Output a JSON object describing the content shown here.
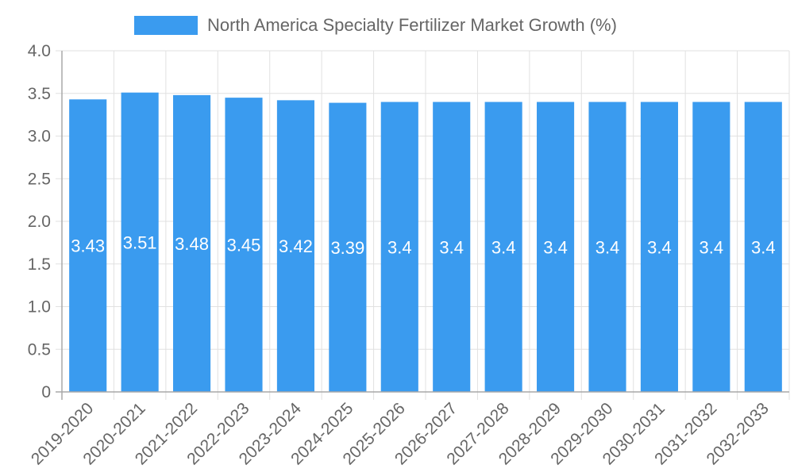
{
  "chart_data": {
    "type": "bar",
    "title": "",
    "legend": {
      "position": "top",
      "entries": [
        {
          "label": "North America Specialty Fertilizer Market Growth (%)",
          "color": "#3a9bef"
        }
      ]
    },
    "categories": [
      "2019-2020",
      "2020-2021",
      "2021-2022",
      "2022-2023",
      "2023-2024",
      "2024-2025",
      "2025-2026",
      "2026-2027",
      "2027-2028",
      "2028-2029",
      "2029-2030",
      "2030-2031",
      "2031-2032",
      "2032-2033"
    ],
    "series": [
      {
        "name": "North America Specialty Fertilizer Market Growth (%)",
        "values": [
          3.43,
          3.51,
          3.48,
          3.45,
          3.42,
          3.39,
          3.4,
          3.4,
          3.4,
          3.4,
          3.4,
          3.4,
          3.4,
          3.4
        ],
        "labels": [
          "3.43",
          "3.51",
          "3.48",
          "3.45",
          "3.42",
          "3.39",
          "3.4",
          "3.4",
          "3.4",
          "3.4",
          "3.4",
          "3.4",
          "3.4",
          "3.4"
        ],
        "color": "#3a9bef"
      }
    ],
    "xlabel": "",
    "ylabel": "",
    "ylim": [
      0,
      4.0
    ],
    "yticks": [
      "0",
      "0.5",
      "1.0",
      "1.5",
      "2.0",
      "2.5",
      "3.0",
      "3.5",
      "4.0"
    ],
    "ytick_values": [
      0,
      0.5,
      1.0,
      1.5,
      2.0,
      2.5,
      3.0,
      3.5,
      4.0
    ],
    "grid": true,
    "data_labels": true,
    "x_tick_rotation": -45
  }
}
